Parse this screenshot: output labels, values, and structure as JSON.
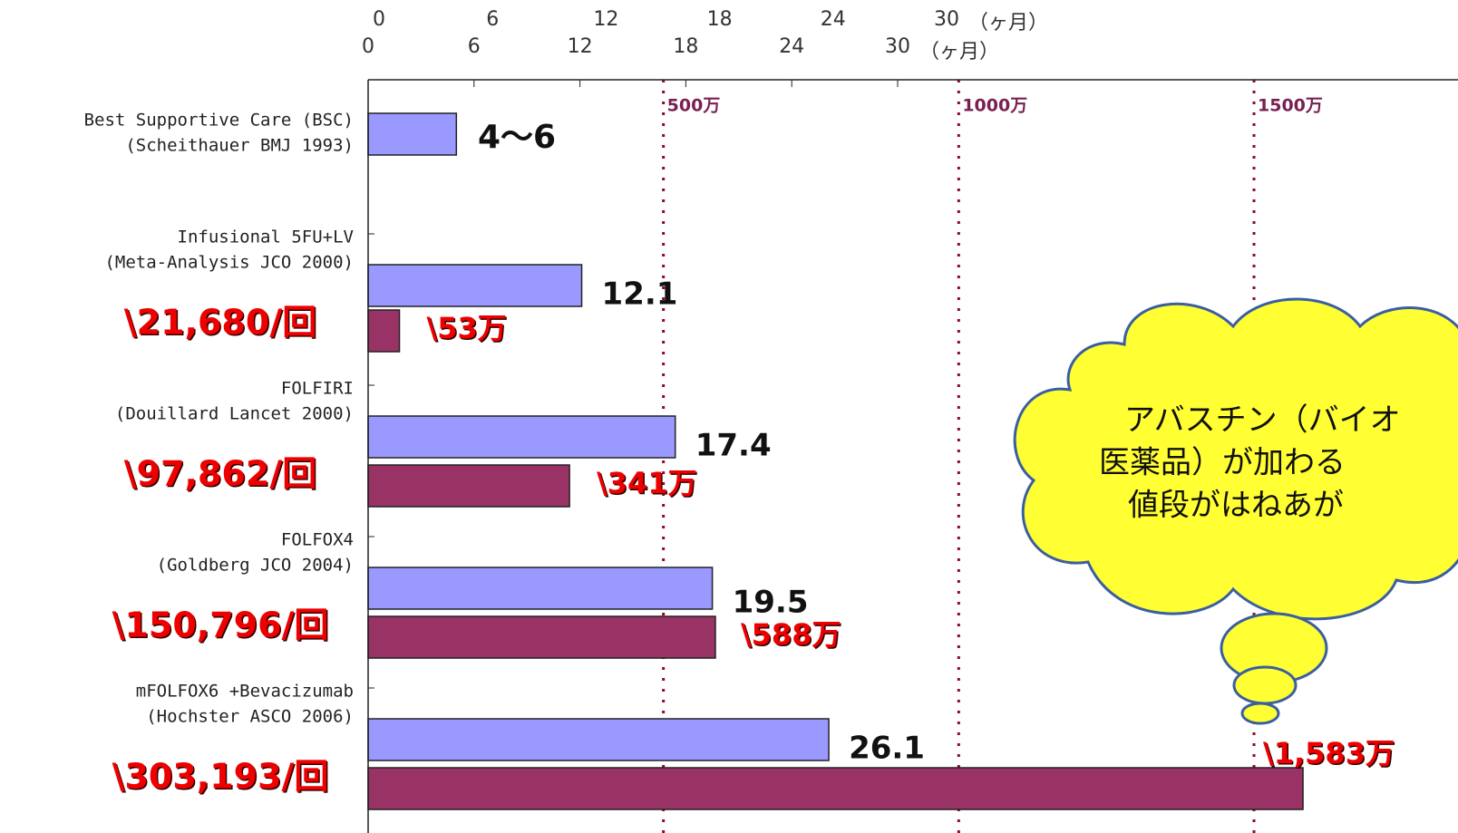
{
  "chart_data": {
    "type": "bar",
    "orientation": "horizontal",
    "categories": [
      "Best Supportive Care (BSC)",
      "Infusional 5FU+LV",
      "FOLFIRI",
      "FOLFOX4",
      "mFOLFOX6 +Bevacizumab"
    ],
    "category_sources": [
      "(Scheithauer BMJ 1993)",
      "(Meta-Analysis JCO 2000)",
      "(Douillard Lancet 2000)",
      "(Goldberg JCO 2004)",
      "(Hochster ASCO 2006)"
    ],
    "per_dose_costs": [
      null,
      "\\21,680/回",
      "\\97,862/回",
      "\\150,796/回",
      "\\303,193/回"
    ],
    "series": [
      {
        "color": "#9999ff",
        "values": [
          5,
          12.1,
          17.4,
          19.5,
          26.1
        ],
        "value_labels": [
          null,
          "12.1",
          "17.4",
          "19.5",
          "26.1"
        ]
      },
      {
        "color": "#993366",
        "axis": "x2",
        "values": [
          null,
          53,
          341,
          588,
          1583
        ],
        "value_labels": [
          null,
          "\\53万",
          "\\341万",
          "\\588万",
          "\\1,583万"
        ]
      }
    ],
    "annotations": [
      "4～6"
    ],
    "xlim": [
      0,
      30
    ],
    "xticks": [
      0,
      6,
      12,
      18,
      24,
      30
    ],
    "x_unit": "（ヶ月）",
    "x2lim": [
      0,
      1500
    ],
    "x2ticks": [
      {
        "value": 500,
        "label": "500万"
      },
      {
        "value": 1000,
        "label": "1000万"
      },
      {
        "value": 1500,
        "label": "1500万"
      }
    ],
    "callout": [
      "アバスチン（バイオ",
      "医薬品）が加わる",
      "値段がはねあが"
    ]
  }
}
